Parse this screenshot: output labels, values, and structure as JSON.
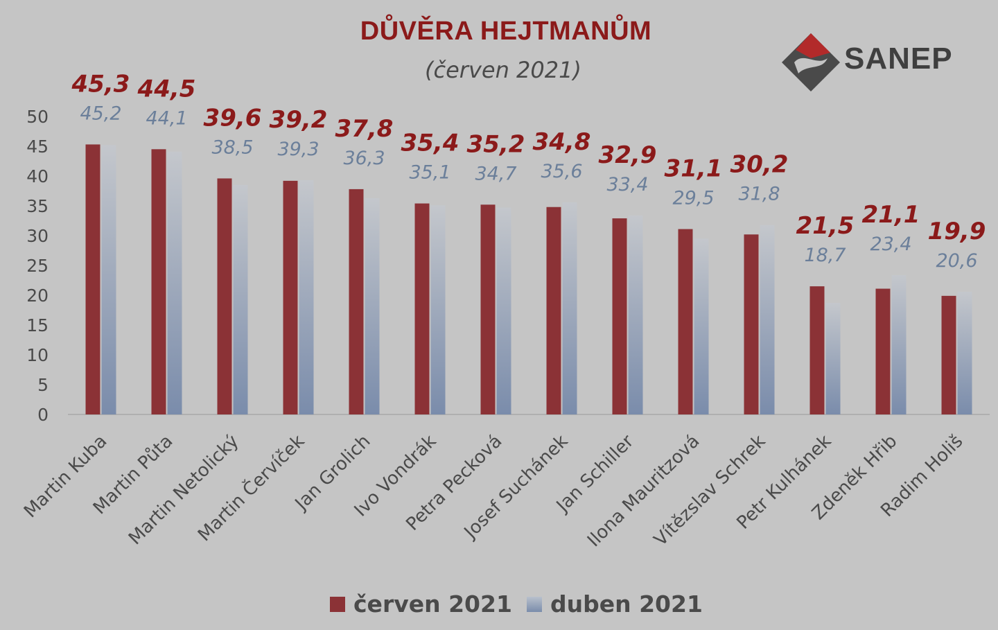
{
  "colors": {
    "background": "#c5c5c5",
    "cerven": "#8b3236",
    "duben_top": "#c4c7cc",
    "duben_bottom": "#7a8cab",
    "cerven_label": "#8b1a1a",
    "duben_label": "#6b7f9a",
    "axis_text": "#4a4a4a"
  },
  "logo": {
    "text": "SANEP",
    "icon": "sanep-logo-icon"
  },
  "chart_data": {
    "type": "bar",
    "title": "DŮVĚRA HEJTMANŮM",
    "subtitle": "(červen 2021)",
    "categories": [
      "Martin Kuba",
      "Martin Půta",
      "Martin Netolický",
      "Martin Červíček",
      "Jan Grolich",
      "Ivo Vondrák",
      "Petra Pecková",
      "Josef Suchánek",
      "Jan Schiller",
      "Ilona Mauritzová",
      "Vítězslav Schrek",
      "Petr Kulhánek",
      "Zdeněk Hřib",
      "Radim Holiš"
    ],
    "series": [
      {
        "name": "červen 2021",
        "values": [
          45.3,
          44.5,
          39.6,
          39.2,
          37.8,
          35.4,
          35.2,
          34.8,
          32.9,
          31.1,
          30.2,
          21.5,
          21.1,
          19.9
        ],
        "labels": [
          "45,3",
          "44,5",
          "39,6",
          "39,2",
          "37,8",
          "35,4",
          "35,2",
          "34,8",
          "32,9",
          "31,1",
          "30,2",
          "21,5",
          "21,1",
          "19,9"
        ]
      },
      {
        "name": "duben 2021",
        "values": [
          45.2,
          44.1,
          38.5,
          39.3,
          36.3,
          35.1,
          34.7,
          35.6,
          33.4,
          29.5,
          31.8,
          18.7,
          23.4,
          20.6
        ],
        "labels": [
          "45,2",
          "44,1",
          "38,5",
          "39,3",
          "36,3",
          "35,1",
          "34,7",
          "35,6",
          "33,4",
          "29,5",
          "31,8",
          "18,7",
          "23,4",
          "20,6"
        ]
      }
    ],
    "yticks": [
      "0",
      "5",
      "10",
      "15",
      "20",
      "25",
      "30",
      "35",
      "40",
      "45",
      "50"
    ],
    "ylim": [
      0,
      50
    ],
    "grid": false,
    "legend_position": "bottom"
  }
}
